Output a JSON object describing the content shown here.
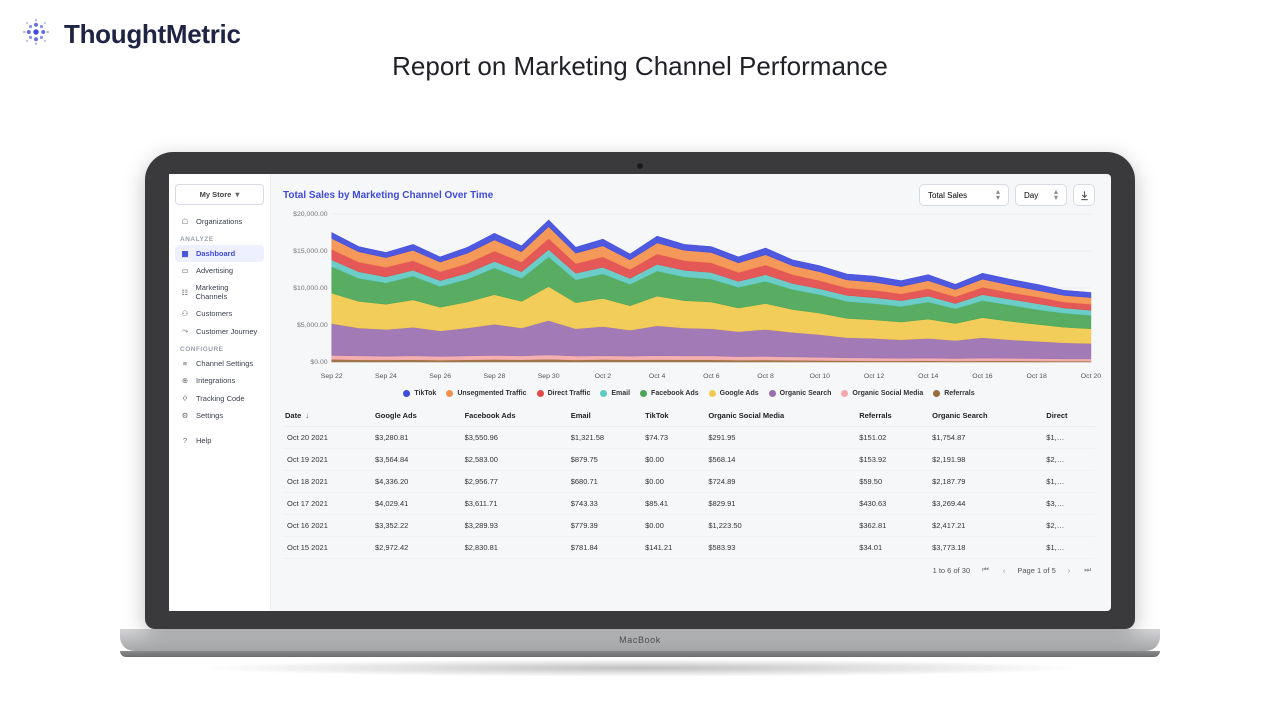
{
  "brand_name": "ThoughtMetric",
  "page_heading": "Report on Marketing Channel Performance",
  "laptop_label": "MacBook",
  "sidebar": {
    "store_label": "My Store",
    "organizations": "Organizations",
    "group_analyze": "ANALYZE",
    "dashboard": "Dashboard",
    "advertising": "Advertising",
    "marketing_channels": "Marketing Channels",
    "customers": "Customers",
    "customer_journey": "Customer Journey",
    "group_configure": "CONFIGURE",
    "channel_settings": "Channel Settings",
    "integrations": "Integrations",
    "tracking_code": "Tracking Code",
    "settings": "Settings",
    "help": "Help"
  },
  "chart": {
    "title": "Total Sales by Marketing Channel Over Time",
    "metric_picker": "Total Sales",
    "grain_picker": "Day",
    "type": "stacked-area",
    "y_axis": {
      "min": 0,
      "max": 20000,
      "ticks": [
        "$0.00",
        "$5,000.00",
        "$10,000.00",
        "$15,000.00",
        "$20,000.00"
      ]
    },
    "x_labels": [
      "Sep 22",
      "Sep 24",
      "Sep 26",
      "Sep 28",
      "Sep 30",
      "Oct 2",
      "Oct 4",
      "Oct 6",
      "Oct 8",
      "Oct 10",
      "Oct 12",
      "Oct 14",
      "Oct 16",
      "Oct 18",
      "Oct 20"
    ],
    "series": [
      {
        "name": "TikTok",
        "color": "#3f4bdc"
      },
      {
        "name": "Unsegmented Traffic",
        "color": "#f4904d"
      },
      {
        "name": "Direct Traffic",
        "color": "#e24a4a"
      },
      {
        "name": "Email",
        "color": "#5fc9c3"
      },
      {
        "name": "Facebook Ads",
        "color": "#4aa655"
      },
      {
        "name": "Google Ads",
        "color": "#f2c94c"
      },
      {
        "name": "Organic Search",
        "color": "#9a6fb0"
      },
      {
        "name": "Organic Social Media",
        "color": "#f3a9a9"
      },
      {
        "name": "Referrals",
        "color": "#9a6b3c"
      }
    ],
    "stacked_totals_by_series": {
      "comment": "Cumulative top-of-stack y-values (in dollars, 0-20000) per x tick, one array per series from bottom layer to top layer. Colors drawn top-down so last series listed here is visually on top.",
      "order_bottom_to_top": [
        "Referrals",
        "Organic Social Media",
        "Organic Search",
        "Google Ads",
        "Facebook Ads",
        "Email",
        "Direct Traffic",
        "Unsegmented Traffic",
        "TikTok"
      ],
      "Referrals": [
        350,
        300,
        280,
        320,
        260,
        300,
        340,
        310,
        380,
        290,
        330,
        300,
        320,
        310,
        300,
        250,
        270,
        240,
        210,
        180,
        160,
        150,
        170,
        140,
        160,
        150,
        130,
        120,
        120
      ],
      "Organic Social Media": [
        900,
        820,
        780,
        840,
        760,
        820,
        900,
        830,
        960,
        810,
        850,
        800,
        860,
        830,
        820,
        720,
        760,
        700,
        640,
        570,
        540,
        510,
        540,
        480,
        540,
        500,
        470,
        430,
        420
      ],
      "Organic Search": [
        5200,
        4600,
        4400,
        4700,
        4200,
        4600,
        5100,
        4600,
        5600,
        4500,
        4800,
        4300,
        4900,
        4600,
        4500,
        4100,
        4400,
        4000,
        3700,
        3300,
        3200,
        3000,
        3200,
        2900,
        3300,
        3000,
        2800,
        2600,
        2500
      ],
      "Google Ads": [
        9300,
        8200,
        7800,
        8400,
        7400,
        8100,
        9100,
        8200,
        10200,
        8000,
        8600,
        7600,
        8900,
        8300,
        8100,
        7300,
        7900,
        7100,
        6600,
        5900,
        5700,
        5400,
        5800,
        5200,
        6000,
        5500,
        5100,
        4700,
        4500
      ],
      "Facebook Ads": [
        12900,
        11300,
        10700,
        11600,
        10200,
        11200,
        12700,
        11300,
        14200,
        11100,
        11900,
        10500,
        12300,
        11500,
        11200,
        10100,
        10900,
        9800,
        9100,
        8200,
        7900,
        7500,
        8100,
        7200,
        8300,
        7700,
        7100,
        6600,
        6300
      ],
      "Email": [
        13800,
        12200,
        11500,
        12400,
        11000,
        12000,
        13600,
        12200,
        15200,
        12000,
        12800,
        11300,
        13200,
        12400,
        12100,
        10900,
        11800,
        10600,
        9900,
        9000,
        8700,
        8300,
        8900,
        7900,
        9100,
        8500,
        7900,
        7300,
        7000
      ],
      "Direct Traffic": [
        15200,
        13500,
        12800,
        13700,
        12200,
        13300,
        15000,
        13500,
        16700,
        13300,
        14200,
        12500,
        14600,
        13700,
        13400,
        12100,
        13100,
        11800,
        11000,
        10000,
        9700,
        9200,
        9900,
        8800,
        10100,
        9400,
        8800,
        8100,
        7800
      ],
      "Unsegmented Traffic": [
        16700,
        14900,
        14100,
        15100,
        13500,
        14700,
        16500,
        14900,
        18300,
        14700,
        15700,
        13800,
        16100,
        15100,
        14800,
        13400,
        14500,
        13000,
        12200,
        11100,
        10800,
        10200,
        11000,
        9800,
        11200,
        10400,
        9700,
        9000,
        8700
      ],
      "TikTok": [
        17500,
        15600,
        14800,
        15900,
        14200,
        15500,
        17400,
        15700,
        19200,
        15500,
        16600,
        14600,
        17000,
        15900,
        15600,
        14200,
        15400,
        13800,
        13000,
        11900,
        11600,
        11000,
        11800,
        10500,
        12000,
        11200,
        10500,
        9700,
        9400
      ]
    }
  },
  "table": {
    "columns": [
      "Date",
      "Google Ads",
      "Facebook Ads",
      "Email",
      "TikTok",
      "Organic Social Media",
      "Referrals",
      "Organic Search",
      "Direct"
    ],
    "sort_column": "Date",
    "rows": [
      [
        "Oct 20 2021",
        "$3,280.81",
        "$3,550.96",
        "$1,321.58",
        "$74.73",
        "$291.95",
        "$151.02",
        "$1,754.87",
        "$1,…"
      ],
      [
        "Oct 19 2021",
        "$3,564.84",
        "$2,583.00",
        "$879.75",
        "$0.00",
        "$568.14",
        "$153.92",
        "$2,191.98",
        "$2,…"
      ],
      [
        "Oct 18 2021",
        "$4,336.20",
        "$2,956.77",
        "$680.71",
        "$0.00",
        "$724.89",
        "$59.50",
        "$2,187.79",
        "$1,…"
      ],
      [
        "Oct 17 2021",
        "$4,029.41",
        "$3,611.71",
        "$743.33",
        "$85.41",
        "$829.91",
        "$430.63",
        "$3,269.44",
        "$3,…"
      ],
      [
        "Oct 16 2021",
        "$3,352.22",
        "$3,289.93",
        "$779.39",
        "$0.00",
        "$1,223.50",
        "$362.81",
        "$2,417.21",
        "$2,…"
      ],
      [
        "Oct 15 2021",
        "$2,972.42",
        "$2,830.81",
        "$781.84",
        "$141.21",
        "$583.93",
        "$34.01",
        "$3,773.18",
        "$1,…"
      ]
    ],
    "pager": {
      "range": "1 to 6 of 30",
      "page": "Page 1 of 5"
    }
  }
}
